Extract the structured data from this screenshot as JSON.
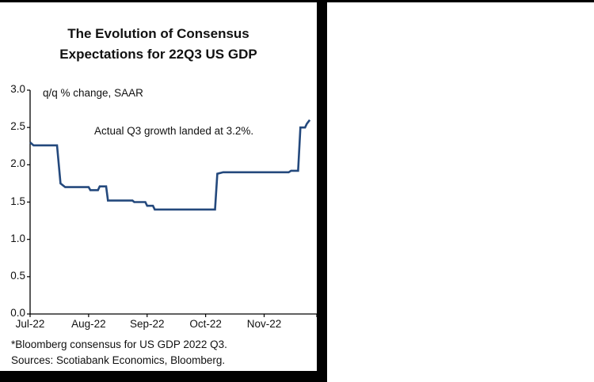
{
  "chart": {
    "title_line1": "The Evolution of Consensus",
    "title_line2": "Expectations for 22Q3 US GDP",
    "unit_label": "q/q % change, SAAR",
    "annotation": "Actual Q3 growth landed at 3.2%.",
    "footnote1": "*Bloomberg consensus for US GDP 2022 Q3.",
    "footnote2": "Sources: Scotiabank Economics, Bloomberg.",
    "line_color": "#24497D",
    "axis_color": "#000000"
  },
  "chart_data": {
    "type": "line",
    "title": "The Evolution of Consensus Expectations for 22Q3 US GDP",
    "ylabel": "q/q % change, SAAR",
    "xlabel": "",
    "grid": false,
    "legend": "none",
    "annotation": "Actual Q3 growth landed at 3.2%.",
    "xlim": [
      0,
      4.9
    ],
    "ylim": [
      0,
      3.0
    ],
    "y_ticks": [
      0.0,
      0.5,
      1.0,
      1.5,
      2.0,
      2.5,
      3.0
    ],
    "x_tick_positions": [
      0,
      1,
      2,
      3,
      4
    ],
    "x_tick_labels": [
      "Jul-22",
      "Aug-22",
      "Sep-22",
      "Oct-22",
      "Nov-22"
    ],
    "x_unit": "months since Jul-2022",
    "series": [
      {
        "name": "Bloomberg consensus for US GDP 2022 Q3 (q/q % change, SAAR)",
        "x": [
          0.0,
          0.06,
          0.46,
          0.52,
          0.6,
          1.0,
          1.03,
          1.16,
          1.19,
          1.3,
          1.33,
          1.75,
          1.78,
          1.97,
          2.0,
          2.1,
          2.13,
          3.16,
          3.2,
          3.3,
          4.42,
          4.46,
          4.58,
          4.62,
          4.7,
          4.73,
          4.78
        ],
        "y": [
          2.3,
          2.26,
          2.26,
          1.75,
          1.7,
          1.7,
          1.66,
          1.66,
          1.71,
          1.71,
          1.52,
          1.52,
          1.5,
          1.5,
          1.45,
          1.45,
          1.4,
          1.4,
          1.88,
          1.9,
          1.9,
          1.92,
          1.92,
          2.5,
          2.5,
          2.55,
          2.6
        ]
      }
    ]
  }
}
